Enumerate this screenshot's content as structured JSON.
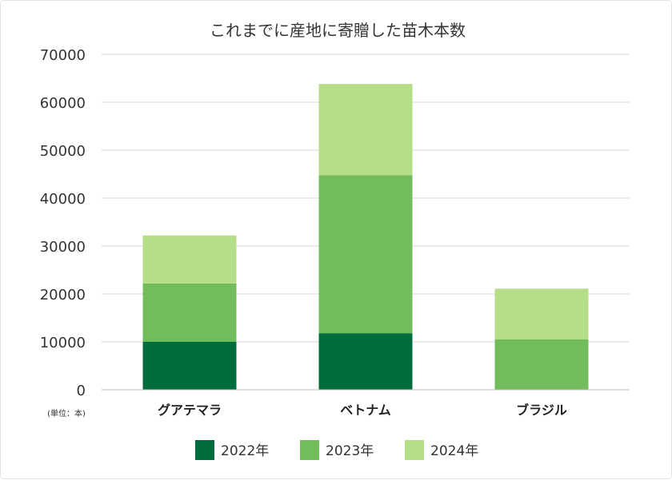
{
  "chart_data": {
    "type": "bar",
    "stacked": true,
    "title": "これまでに産地に寄贈した苗木本数",
    "unit_label": "(単位：本)",
    "categories": [
      "グアテマラ",
      "ベトナム",
      "ブラジル"
    ],
    "series": [
      {
        "name": "2022年",
        "values": [
          10000,
          11800,
          0
        ],
        "color": "#006e3c"
      },
      {
        "name": "2023年",
        "values": [
          12200,
          33000,
          10500
        ],
        "color": "#72bc5c"
      },
      {
        "name": "2024年",
        "values": [
          10000,
          19000,
          10600
        ],
        "color": "#b6de86"
      }
    ],
    "ylim": [
      0,
      70000
    ],
    "yticks": [
      "0",
      "10000",
      "20000",
      "30000",
      "40000",
      "50000",
      "60000",
      "70000"
    ],
    "grid": true,
    "legend_position": "bottom"
  }
}
